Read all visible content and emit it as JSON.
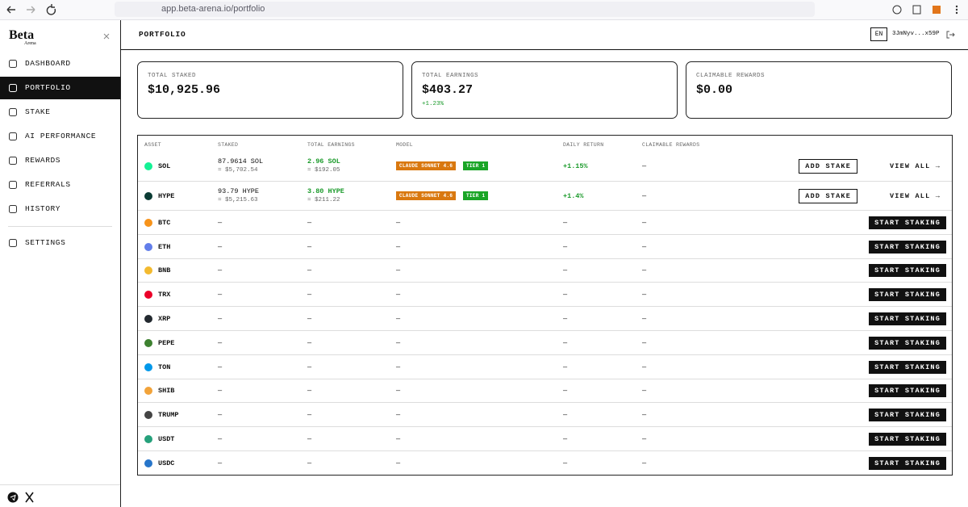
{
  "browser": {
    "url": "app.beta-arena.io/portfolio"
  },
  "sidebar": {
    "logo": {
      "title": "Beta",
      "subtitle": "Arena"
    },
    "nav": [
      {
        "label": "DASHBOARD"
      },
      {
        "label": "PORTFOLIO",
        "active": true
      },
      {
        "label": "STAKE"
      },
      {
        "label": "AI PERFORMANCE"
      },
      {
        "label": "REWARDS"
      },
      {
        "label": "REFERRALS"
      },
      {
        "label": "HISTORY"
      },
      {
        "label": "SETTINGS"
      }
    ]
  },
  "header": {
    "title": "PORTFOLIO",
    "language": "EN",
    "wallet": "3JmNyv...x59P"
  },
  "cards": [
    {
      "label": "TOTAL STAKED",
      "value": "$10,925.96"
    },
    {
      "label": "TOTAL EARNINGS",
      "value": "$403.27",
      "change": "+1.23%"
    },
    {
      "label": "CLAIMABLE REWARDS",
      "value": "$0.00"
    }
  ],
  "table": {
    "columns": [
      "ASSET",
      "STAKED",
      "TOTAL EARNINGS",
      "MODEL",
      "DAILY RETURN",
      "CLAIMABLE REWARDS"
    ],
    "rows": [
      {
        "asset": "SOL",
        "staked": "87.9614 SOL",
        "staked_usd": "≈ $5,702.54",
        "earnings": "2.96 SOL",
        "earnings_usd": "≈ $192.05",
        "model": "CLAUDE SONNET 4.6",
        "tier": "TIER 1",
        "daily_return": "+1.15%",
        "claimable": "—",
        "actions": [
          "ADD STAKE",
          "VIEW ALL →"
        ]
      },
      {
        "asset": "HYPE",
        "staked": "93.79 HYPE",
        "staked_usd": "≈ $5,215.63",
        "earnings": "3.80 HYPE",
        "earnings_usd": "≈ $211.22",
        "model": "CLAUDE SONNET 4.6",
        "tier": "TIER 1",
        "daily_return": "+1.4%",
        "claimable": "—",
        "actions": [
          "ADD STAKE",
          "VIEW ALL →"
        ]
      },
      {
        "asset": "BTC",
        "staked": "—",
        "earnings": "—",
        "model": "—",
        "daily_return": "—",
        "claimable": "—",
        "actions": [
          "START STAKING"
        ]
      },
      {
        "asset": "ETH",
        "staked": "—",
        "earnings": "—",
        "model": "—",
        "daily_return": "—",
        "claimable": "—",
        "actions": [
          "START STAKING"
        ]
      },
      {
        "asset": "BNB",
        "staked": "—",
        "earnings": "—",
        "model": "—",
        "daily_return": "—",
        "claimable": "—",
        "actions": [
          "START STAKING"
        ]
      },
      {
        "asset": "TRX",
        "staked": "—",
        "earnings": "—",
        "model": "—",
        "daily_return": "—",
        "claimable": "—",
        "actions": [
          "START STAKING"
        ]
      },
      {
        "asset": "XRP",
        "staked": "—",
        "earnings": "—",
        "model": "—",
        "daily_return": "—",
        "claimable": "—",
        "actions": [
          "START STAKING"
        ]
      },
      {
        "asset": "PEPE",
        "staked": "—",
        "earnings": "—",
        "model": "—",
        "daily_return": "—",
        "claimable": "—",
        "actions": [
          "START STAKING"
        ]
      },
      {
        "asset": "TON",
        "staked": "—",
        "earnings": "—",
        "model": "—",
        "daily_return": "—",
        "claimable": "—",
        "actions": [
          "START STAKING"
        ]
      },
      {
        "asset": "SHIB",
        "staked": "—",
        "earnings": "—",
        "model": "—",
        "daily_return": "—",
        "claimable": "—",
        "actions": [
          "START STAKING"
        ]
      },
      {
        "asset": "TRUMP",
        "staked": "—",
        "earnings": "—",
        "model": "—",
        "daily_return": "—",
        "claimable": "—",
        "actions": [
          "START STAKING"
        ]
      },
      {
        "asset": "USDT",
        "staked": "—",
        "earnings": "—",
        "model": "—",
        "daily_return": "—",
        "claimable": "—",
        "actions": [
          "START STAKING"
        ]
      },
      {
        "asset": "USDC",
        "staked": "—",
        "earnings": "—",
        "model": "—",
        "daily_return": "—",
        "claimable": "—",
        "actions": [
          "START STAKING"
        ]
      }
    ]
  }
}
